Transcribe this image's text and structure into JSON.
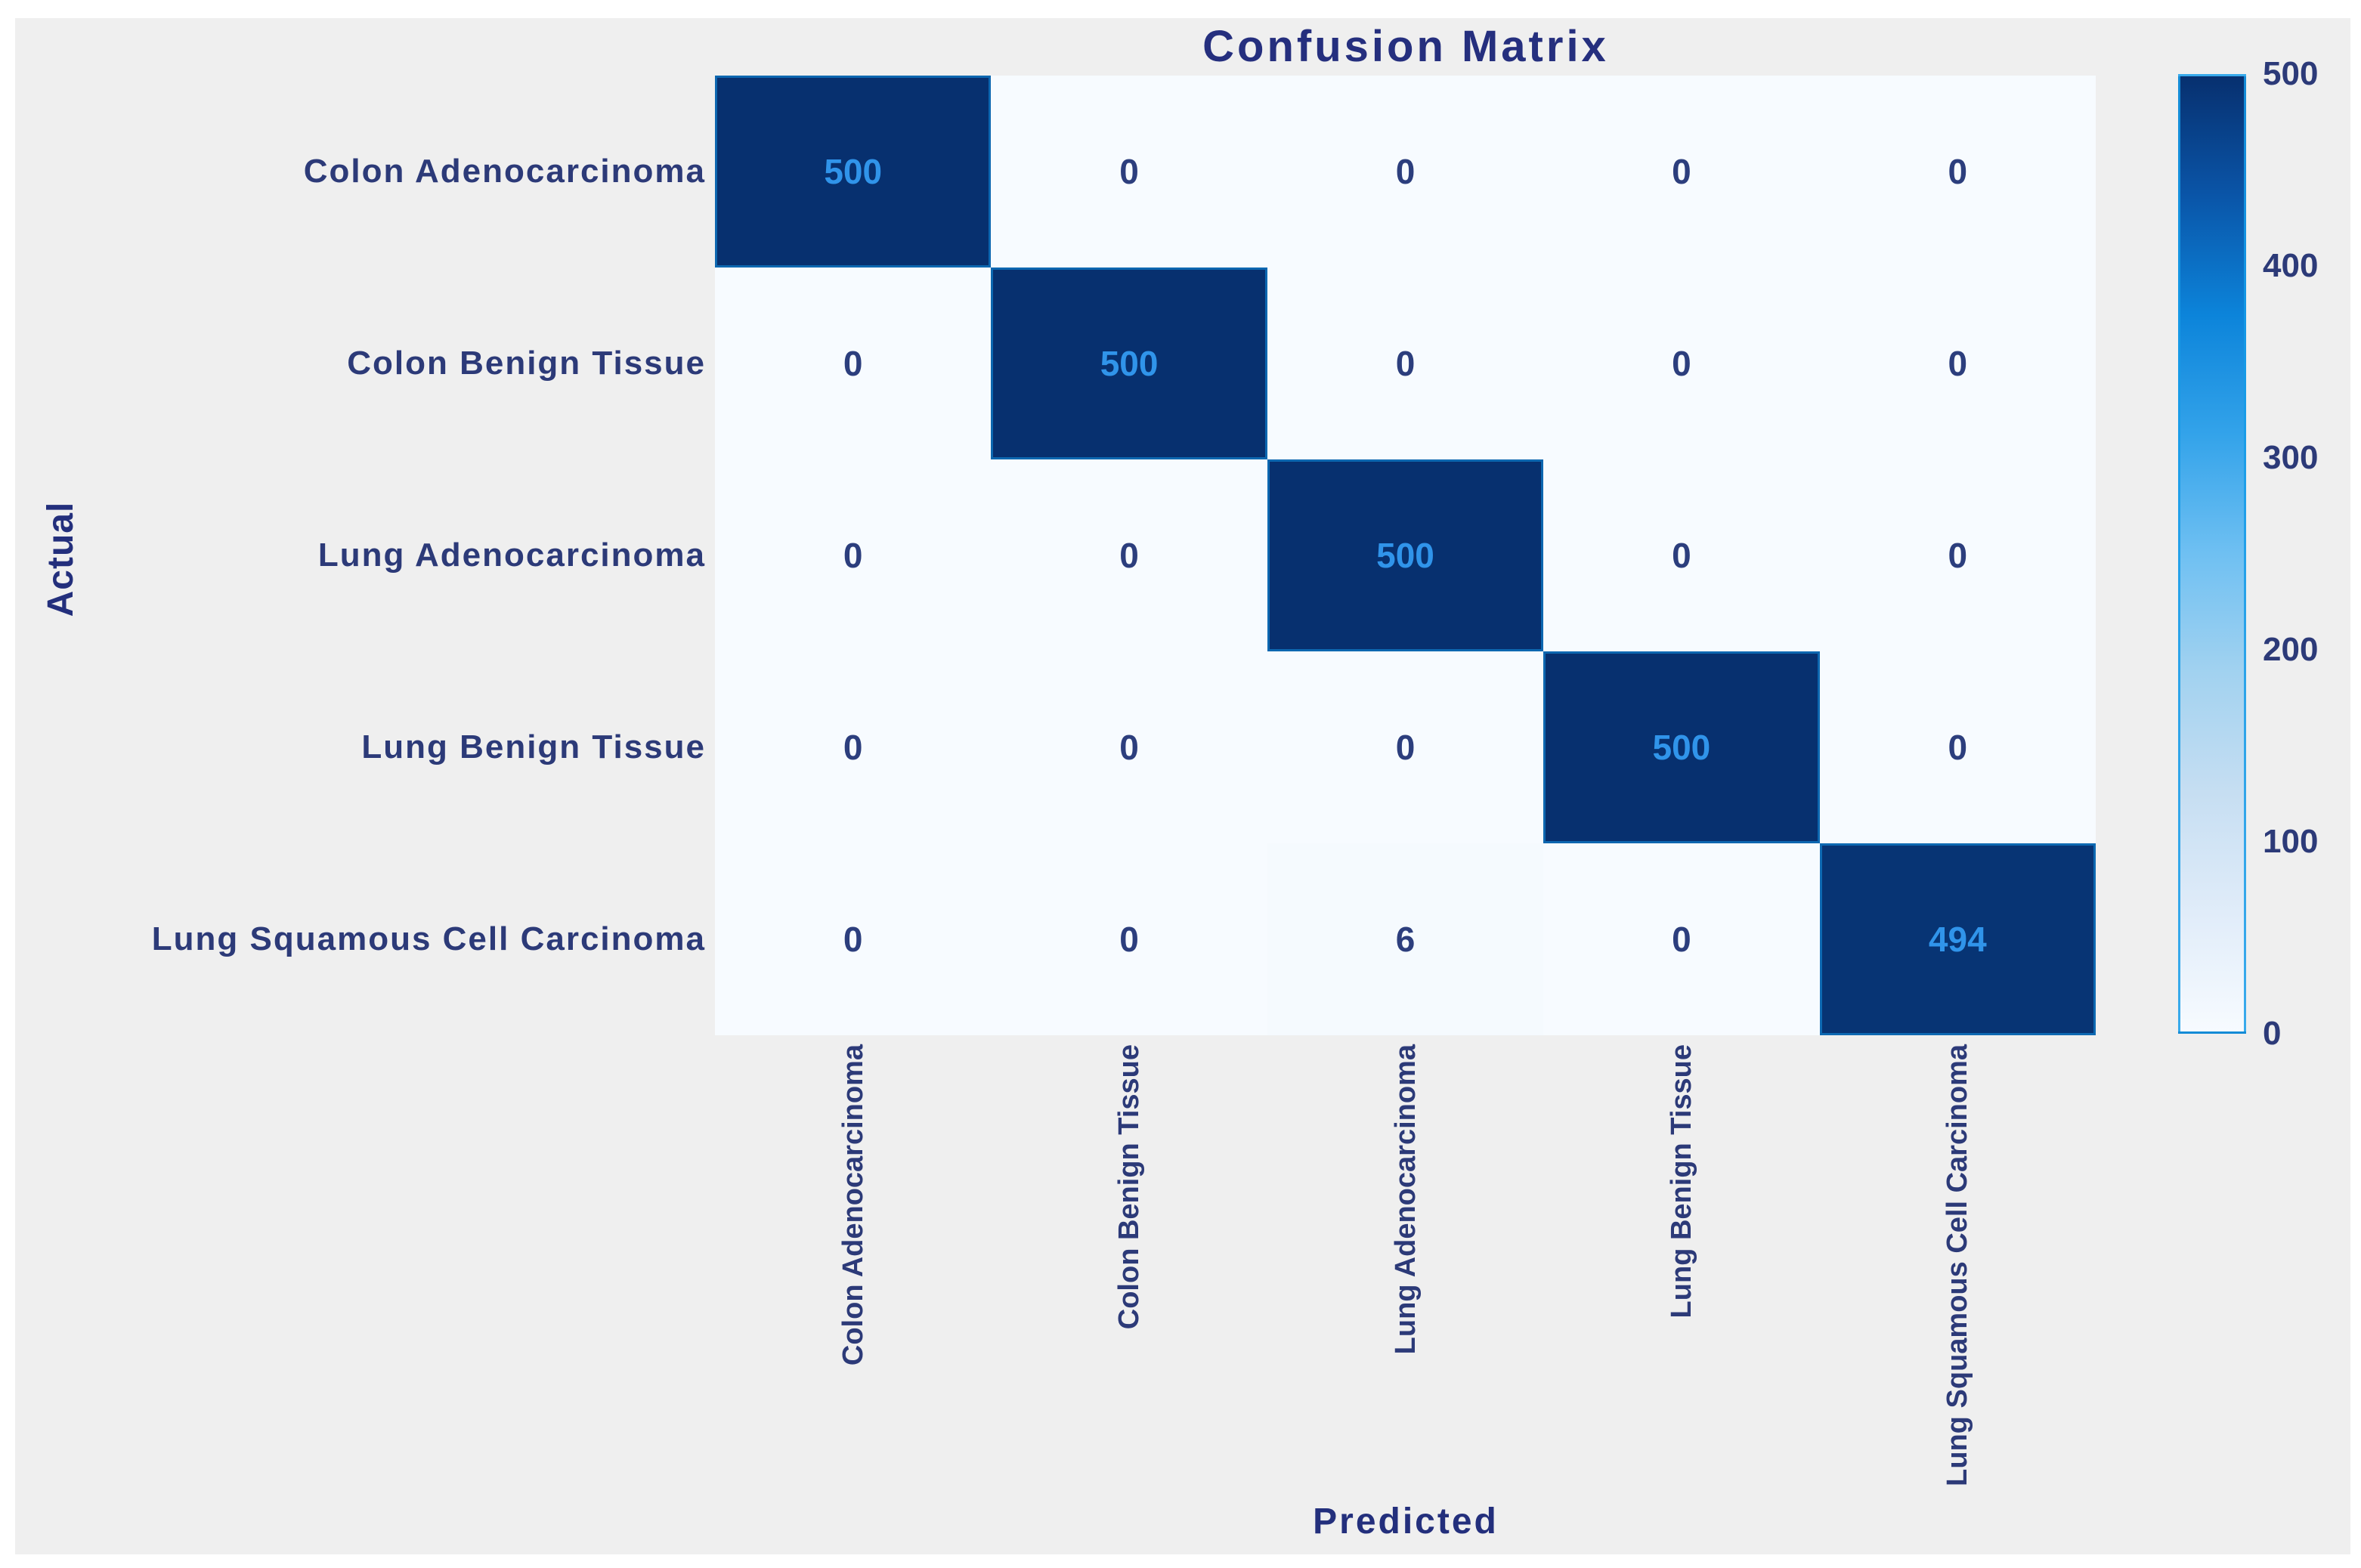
{
  "chart_data": {
    "type": "heatmap",
    "title": "Confusion Matrix",
    "xlabel": "Predicted",
    "ylabel": "Actual",
    "x_categories": [
      "Colon Adenocarcinoma",
      "Colon Benign Tissue",
      "Lung Adenocarcinoma",
      "Lung Benign Tissue",
      "Lung Squamous Cell Carcinoma"
    ],
    "y_categories": [
      "Colon Adenocarcinoma",
      "Colon Benign Tissue",
      "Lung Adenocarcinoma",
      "Lung Benign Tissue",
      "Lung Squamous Cell Carcinoma"
    ],
    "matrix": [
      [
        500,
        0,
        0,
        0,
        0
      ],
      [
        0,
        500,
        0,
        0,
        0
      ],
      [
        0,
        0,
        500,
        0,
        0
      ],
      [
        0,
        0,
        0,
        500,
        0
      ],
      [
        0,
        0,
        6,
        0,
        494
      ]
    ],
    "colorbar": {
      "min": 0,
      "max": 500,
      "ticks": [
        500,
        400,
        300,
        200,
        100,
        0
      ],
      "position": "right",
      "colormap": "Blues"
    },
    "legend": "none",
    "grid": "off"
  },
  "colors": {
    "figure_bg": "#efefef",
    "page_bg": "#ffffff",
    "title_text": "#252f7e",
    "tick_text": "#2c3a78",
    "axis_label_text": "#232f7c",
    "value_on_dark": "#3094ea",
    "value_on_light": "#2c3e7d",
    "cmap_stops": [
      "#f7fbff",
      "#e0ecf9",
      "#c6def2",
      "#a2d2f0",
      "#6fc0f2",
      "#33a3ea",
      "#0c84da",
      "#0a55a8",
      "#07306f"
    ]
  }
}
